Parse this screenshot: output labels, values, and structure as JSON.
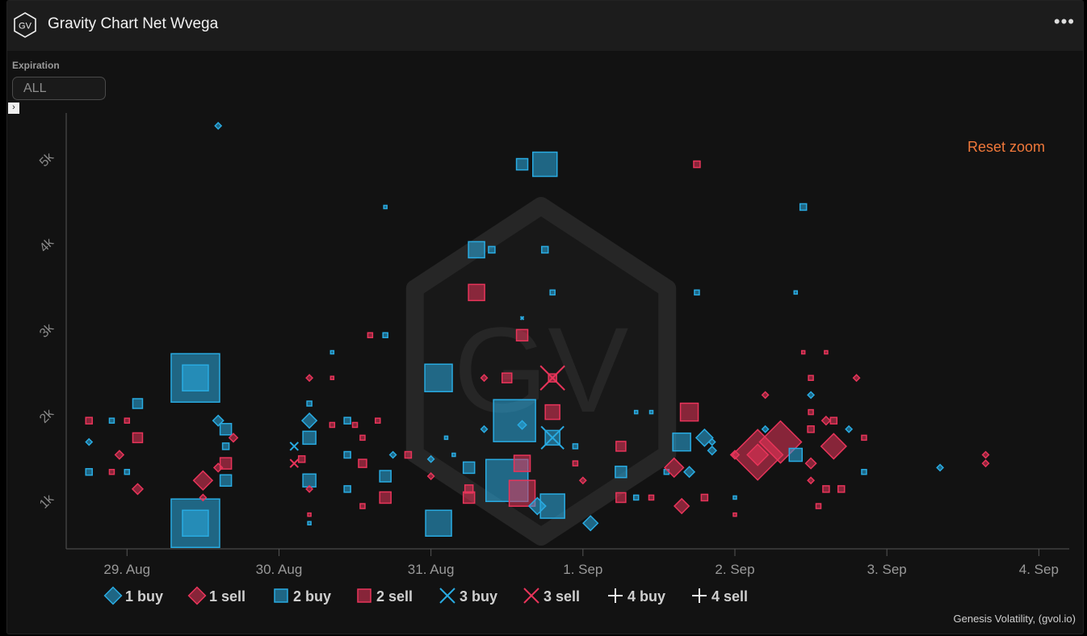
{
  "header": {
    "title": "Gravity Chart Net Wvega",
    "logo": "GV",
    "menu_icon": "more-horizontal-icon"
  },
  "filter": {
    "label": "Expiration",
    "value": "ALL"
  },
  "reset_zoom": "Reset zoom",
  "watermark": "GV",
  "credit": "Genesis Volatility, (gvol.io)",
  "colors": {
    "buy": "#29abe2",
    "sell": "#e8345a",
    "bg": "#121212"
  },
  "chart_data": {
    "type": "scatter",
    "x_ticks": [
      "29. Aug",
      "30. Aug",
      "31. Aug",
      "1. Sep",
      "2. Sep",
      "3. Sep",
      "4. Sep"
    ],
    "xlim": [
      28.6,
      35.2
    ],
    "y_ticks": [
      1000,
      2000,
      3000,
      4000,
      5000
    ],
    "y_tick_labels": [
      "1k",
      "2k",
      "3k",
      "4k",
      "5k"
    ],
    "ylim": [
      500,
      5600
    ],
    "legend": [
      {
        "label": "1 buy",
        "marker": "diamond",
        "side": "buy"
      },
      {
        "label": "1 sell",
        "marker": "diamond",
        "side": "sell"
      },
      {
        "label": "2 buy",
        "marker": "square",
        "side": "buy"
      },
      {
        "label": "2 sell",
        "marker": "square",
        "side": "sell"
      },
      {
        "label": "3 buy",
        "marker": "x",
        "side": "buy"
      },
      {
        "label": "3 sell",
        "marker": "x",
        "side": "sell"
      },
      {
        "label": "4 buy",
        "marker": "plus",
        "side": "neutral"
      },
      {
        "label": "4 sell",
        "marker": "plus",
        "side": "neutral"
      }
    ],
    "points": [
      {
        "x": 28.75,
        "y": 1750,
        "s": "1 buy",
        "size": 3
      },
      {
        "x": 28.75,
        "y": 1400,
        "s": "2 buy",
        "size": 4
      },
      {
        "x": 28.75,
        "y": 2000,
        "s": "2 sell",
        "size": 4
      },
      {
        "x": 28.9,
        "y": 2000,
        "s": "2 buy",
        "size": 3
      },
      {
        "x": 28.9,
        "y": 1400,
        "s": "2 sell",
        "size": 3
      },
      {
        "x": 28.95,
        "y": 1600,
        "s": "1 sell",
        "size": 4
      },
      {
        "x": 29.0,
        "y": 2000,
        "s": "2 sell",
        "size": 3
      },
      {
        "x": 29.0,
        "y": 1400,
        "s": "2 buy",
        "size": 3
      },
      {
        "x": 29.07,
        "y": 1200,
        "s": "1 sell",
        "size": 5
      },
      {
        "x": 29.07,
        "y": 1800,
        "s": "2 sell",
        "size": 6
      },
      {
        "x": 29.07,
        "y": 2200,
        "s": "2 buy",
        "size": 6
      },
      {
        "x": 29.45,
        "y": 2500,
        "s": "2 buy",
        "size": 30
      },
      {
        "x": 29.45,
        "y": 2500,
        "s": "2 buy",
        "size": 16
      },
      {
        "x": 29.45,
        "y": 800,
        "s": "2 buy",
        "size": 30
      },
      {
        "x": 29.45,
        "y": 800,
        "s": "2 buy",
        "size": 16
      },
      {
        "x": 29.5,
        "y": 1300,
        "s": "1 sell",
        "size": 9
      },
      {
        "x": 29.5,
        "y": 1100,
        "s": "1 sell",
        "size": 3
      },
      {
        "x": 29.6,
        "y": 2000,
        "s": "1 buy",
        "size": 5
      },
      {
        "x": 29.6,
        "y": 1450,
        "s": "1 sell",
        "size": 4
      },
      {
        "x": 29.6,
        "y": 5450,
        "s": "1 buy",
        "size": 3
      },
      {
        "x": 29.65,
        "y": 1900,
        "s": "2 buy",
        "size": 7
      },
      {
        "x": 29.65,
        "y": 1500,
        "s": "2 sell",
        "size": 7
      },
      {
        "x": 29.65,
        "y": 1700,
        "s": "2 buy",
        "size": 4
      },
      {
        "x": 29.65,
        "y": 1300,
        "s": "2 buy",
        "size": 7
      },
      {
        "x": 29.7,
        "y": 1800,
        "s": "1 sell",
        "size": 4
      },
      {
        "x": 30.1,
        "y": 1700,
        "s": "3 buy",
        "size": 5
      },
      {
        "x": 30.1,
        "y": 1500,
        "s": "3 sell",
        "size": 5
      },
      {
        "x": 30.15,
        "y": 1550,
        "s": "2 sell",
        "size": 4
      },
      {
        "x": 30.2,
        "y": 2500,
        "s": "1 sell",
        "size": 3
      },
      {
        "x": 30.2,
        "y": 2000,
        "s": "1 buy",
        "size": 7
      },
      {
        "x": 30.2,
        "y": 1800,
        "s": "2 buy",
        "size": 8
      },
      {
        "x": 30.2,
        "y": 1300,
        "s": "2 buy",
        "size": 8
      },
      {
        "x": 30.2,
        "y": 2200,
        "s": "2 buy",
        "size": 3
      },
      {
        "x": 30.2,
        "y": 1200,
        "s": "1 sell",
        "size": 3
      },
      {
        "x": 30.2,
        "y": 900,
        "s": "2 sell",
        "size": 2
      },
      {
        "x": 30.2,
        "y": 800,
        "s": "2 buy",
        "size": 2
      },
      {
        "x": 30.35,
        "y": 2800,
        "s": "2 buy",
        "size": 2
      },
      {
        "x": 30.35,
        "y": 2500,
        "s": "2 sell",
        "size": 2
      },
      {
        "x": 30.35,
        "y": 1950,
        "s": "2 sell",
        "size": 3
      },
      {
        "x": 30.45,
        "y": 2000,
        "s": "2 buy",
        "size": 4
      },
      {
        "x": 30.45,
        "y": 1600,
        "s": "2 buy",
        "size": 4
      },
      {
        "x": 30.45,
        "y": 1200,
        "s": "2 buy",
        "size": 4
      },
      {
        "x": 30.5,
        "y": 1950,
        "s": "2 sell",
        "size": 3
      },
      {
        "x": 30.55,
        "y": 1500,
        "s": "2 sell",
        "size": 5
      },
      {
        "x": 30.55,
        "y": 1800,
        "s": "2 sell",
        "size": 3
      },
      {
        "x": 30.55,
        "y": 1000,
        "s": "2 sell",
        "size": 3
      },
      {
        "x": 30.6,
        "y": 3000,
        "s": "2 sell",
        "size": 3
      },
      {
        "x": 30.65,
        "y": 2000,
        "s": "2 sell",
        "size": 3
      },
      {
        "x": 30.7,
        "y": 1350,
        "s": "2 buy",
        "size": 7
      },
      {
        "x": 30.7,
        "y": 1100,
        "s": "2 sell",
        "size": 7
      },
      {
        "x": 30.7,
        "y": 3000,
        "s": "2 buy",
        "size": 3
      },
      {
        "x": 30.7,
        "y": 4500,
        "s": "2 buy",
        "size": 2
      },
      {
        "x": 30.75,
        "y": 1600,
        "s": "1 buy",
        "size": 3
      },
      {
        "x": 30.85,
        "y": 1600,
        "s": "2 sell",
        "size": 4
      },
      {
        "x": 31.0,
        "y": 1550,
        "s": "1 buy",
        "size": 3
      },
      {
        "x": 31.0,
        "y": 1350,
        "s": "1 sell",
        "size": 3
      },
      {
        "x": 31.05,
        "y": 2500,
        "s": "2 buy",
        "size": 17
      },
      {
        "x": 31.05,
        "y": 800,
        "s": "2 buy",
        "size": 16
      },
      {
        "x": 31.1,
        "y": 1800,
        "s": "2 buy",
        "size": 2
      },
      {
        "x": 31.15,
        "y": 1600,
        "s": "2 buy",
        "size": 2
      },
      {
        "x": 31.25,
        "y": 1450,
        "s": "2 buy",
        "size": 7
      },
      {
        "x": 31.25,
        "y": 1200,
        "s": "2 sell",
        "size": 5
      },
      {
        "x": 31.25,
        "y": 1100,
        "s": "2 sell",
        "size": 7
      },
      {
        "x": 31.3,
        "y": 4000,
        "s": "2 buy",
        "size": 10
      },
      {
        "x": 31.3,
        "y": 3500,
        "s": "2 sell",
        "size": 10
      },
      {
        "x": 31.35,
        "y": 1900,
        "s": "1 buy",
        "size": 3
      },
      {
        "x": 31.4,
        "y": 4000,
        "s": "2 buy",
        "size": 4
      },
      {
        "x": 31.35,
        "y": 2500,
        "s": "1 sell",
        "size": 3
      },
      {
        "x": 31.5,
        "y": 2500,
        "s": "2 sell",
        "size": 6
      },
      {
        "x": 31.55,
        "y": 2000,
        "s": "2 buy",
        "size": 26
      },
      {
        "x": 31.5,
        "y": 1300,
        "s": "2 buy",
        "size": 26
      },
      {
        "x": 31.6,
        "y": 1150,
        "s": "2 sell",
        "size": 16
      },
      {
        "x": 31.6,
        "y": 1500,
        "s": "2 sell",
        "size": 10
      },
      {
        "x": 31.6,
        "y": 1950,
        "s": "1 buy",
        "size": 4
      },
      {
        "x": 31.6,
        "y": 5000,
        "s": "2 buy",
        "size": 7
      },
      {
        "x": 31.6,
        "y": 3000,
        "s": "2 sell",
        "size": 7
      },
      {
        "x": 31.6,
        "y": 3200,
        "s": "3 buy",
        "size": 2
      },
      {
        "x": 31.7,
        "y": 1000,
        "s": "1 buy",
        "size": 8
      },
      {
        "x": 31.8,
        "y": 1000,
        "s": "2 buy",
        "size": 15
      },
      {
        "x": 31.75,
        "y": 5000,
        "s": "2 buy",
        "size": 15
      },
      {
        "x": 31.75,
        "y": 4000,
        "s": "2 buy",
        "size": 4
      },
      {
        "x": 31.8,
        "y": 3500,
        "s": "2 buy",
        "size": 3
      },
      {
        "x": 31.8,
        "y": 2500,
        "s": "3 sell",
        "size": 15
      },
      {
        "x": 31.8,
        "y": 2500,
        "s": "2 sell",
        "size": 5
      },
      {
        "x": 31.8,
        "y": 2100,
        "s": "2 sell",
        "size": 9
      },
      {
        "x": 31.8,
        "y": 1800,
        "s": "2 buy",
        "size": 9
      },
      {
        "x": 31.8,
        "y": 1800,
        "s": "3 buy",
        "size": 14
      },
      {
        "x": 31.95,
        "y": 1700,
        "s": "2 buy",
        "size": 3
      },
      {
        "x": 31.95,
        "y": 1500,
        "s": "2 sell",
        "size": 3
      },
      {
        "x": 32.0,
        "y": 1300,
        "s": "1 sell",
        "size": 3
      },
      {
        "x": 32.05,
        "y": 800,
        "s": "1 buy",
        "size": 7
      },
      {
        "x": 32.25,
        "y": 1700,
        "s": "2 sell",
        "size": 6
      },
      {
        "x": 32.25,
        "y": 1400,
        "s": "2 buy",
        "size": 7
      },
      {
        "x": 32.25,
        "y": 1100,
        "s": "2 sell",
        "size": 6
      },
      {
        "x": 32.35,
        "y": 2100,
        "s": "2 buy",
        "size": 2
      },
      {
        "x": 32.35,
        "y": 1100,
        "s": "2 buy",
        "size": 3
      },
      {
        "x": 32.45,
        "y": 1100,
        "s": "2 sell",
        "size": 3
      },
      {
        "x": 32.45,
        "y": 2100,
        "s": "2 buy",
        "size": 2
      },
      {
        "x": 32.55,
        "y": 1400,
        "s": "2 buy",
        "size": 3
      },
      {
        "x": 32.6,
        "y": 1450,
        "s": "1 sell",
        "size": 9
      },
      {
        "x": 32.65,
        "y": 1750,
        "s": "2 buy",
        "size": 11
      },
      {
        "x": 32.65,
        "y": 1000,
        "s": "1 sell",
        "size": 7
      },
      {
        "x": 32.7,
        "y": 1400,
        "s": "1 buy",
        "size": 5
      },
      {
        "x": 32.7,
        "y": 2100,
        "s": "2 sell",
        "size": 11
      },
      {
        "x": 32.75,
        "y": 5000,
        "s": "2 sell",
        "size": 4
      },
      {
        "x": 32.75,
        "y": 3500,
        "s": "2 buy",
        "size": 3
      },
      {
        "x": 32.8,
        "y": 1800,
        "s": "1 buy",
        "size": 8
      },
      {
        "x": 32.8,
        "y": 1100,
        "s": "2 sell",
        "size": 4
      },
      {
        "x": 32.85,
        "y": 1650,
        "s": "1 buy",
        "size": 4
      },
      {
        "x": 32.85,
        "y": 1750,
        "s": "1 buy",
        "size": 3
      },
      {
        "x": 33.0,
        "y": 1600,
        "s": "1 sell",
        "size": 4
      },
      {
        "x": 33.0,
        "y": 1100,
        "s": "2 buy",
        "size": 2
      },
      {
        "x": 33.0,
        "y": 900,
        "s": "2 sell",
        "size": 2
      },
      {
        "x": 33.15,
        "y": 1600,
        "s": "1 sell",
        "size": 24
      },
      {
        "x": 33.15,
        "y": 1600,
        "s": "1 sell",
        "size": 10
      },
      {
        "x": 33.2,
        "y": 2300,
        "s": "1 sell",
        "size": 3
      },
      {
        "x": 33.2,
        "y": 1900,
        "s": "1 buy",
        "size": 3
      },
      {
        "x": 33.3,
        "y": 1750,
        "s": "1 sell",
        "size": 20
      },
      {
        "x": 33.4,
        "y": 1600,
        "s": "2 buy",
        "size": 8
      },
      {
        "x": 33.4,
        "y": 3500,
        "s": "2 buy",
        "size": 2
      },
      {
        "x": 33.45,
        "y": 4500,
        "s": "2 buy",
        "size": 4
      },
      {
        "x": 33.45,
        "y": 2800,
        "s": "2 sell",
        "size": 2
      },
      {
        "x": 33.5,
        "y": 2500,
        "s": "2 sell",
        "size": 3
      },
      {
        "x": 33.5,
        "y": 2300,
        "s": "1 buy",
        "size": 3
      },
      {
        "x": 33.5,
        "y": 2100,
        "s": "2 sell",
        "size": 3
      },
      {
        "x": 33.5,
        "y": 1900,
        "s": "2 sell",
        "size": 4
      },
      {
        "x": 33.5,
        "y": 1500,
        "s": "1 sell",
        "size": 5
      },
      {
        "x": 33.5,
        "y": 1300,
        "s": "1 sell",
        "size": 3
      },
      {
        "x": 33.55,
        "y": 1000,
        "s": "2 sell",
        "size": 3
      },
      {
        "x": 33.6,
        "y": 1200,
        "s": "2 sell",
        "size": 4
      },
      {
        "x": 33.6,
        "y": 2000,
        "s": "1 sell",
        "size": 4
      },
      {
        "x": 33.6,
        "y": 2800,
        "s": "2 sell",
        "size": 2
      },
      {
        "x": 33.65,
        "y": 1700,
        "s": "1 sell",
        "size": 12
      },
      {
        "x": 33.65,
        "y": 2000,
        "s": "2 sell",
        "size": 4
      },
      {
        "x": 33.7,
        "y": 1200,
        "s": "2 sell",
        "size": 4
      },
      {
        "x": 33.75,
        "y": 1900,
        "s": "1 buy",
        "size": 3
      },
      {
        "x": 33.8,
        "y": 2500,
        "s": "1 sell",
        "size": 3
      },
      {
        "x": 33.85,
        "y": 1800,
        "s": "2 sell",
        "size": 3
      },
      {
        "x": 33.85,
        "y": 1400,
        "s": "2 buy",
        "size": 3
      },
      {
        "x": 34.35,
        "y": 1450,
        "s": "1 buy",
        "size": 3
      },
      {
        "x": 34.65,
        "y": 1600,
        "s": "1 sell",
        "size": 3
      },
      {
        "x": 34.65,
        "y": 1500,
        "s": "1 sell",
        "size": 3
      }
    ]
  }
}
